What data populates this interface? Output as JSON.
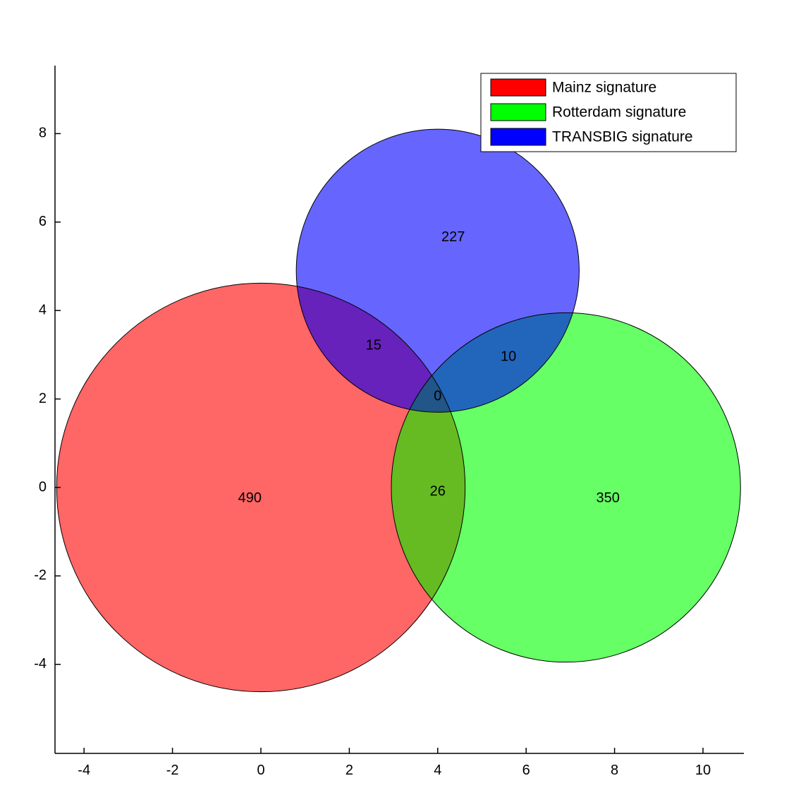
{
  "chart_data": {
    "type": "venn",
    "title": "",
    "xlabel": "",
    "ylabel": "",
    "xlim": [
      -4.6,
      10.9
    ],
    "ylim": [
      -6.1,
      9.5
    ],
    "xticks": [
      -4,
      -2,
      0,
      2,
      4,
      6,
      8,
      10
    ],
    "yticks": [
      -4,
      -2,
      0,
      2,
      4,
      6,
      8
    ],
    "grid": false,
    "legend_position": "top-right",
    "sets": [
      {
        "name": "Mainz signature",
        "color": "#ff0000",
        "fill": "#ff6666",
        "cx": 0,
        "cy": 0,
        "r": 4.62
      },
      {
        "name": "Rotterdam signature",
        "color": "#00ff00",
        "fill": "#66ff66",
        "cx": 6.9,
        "cy": 0,
        "r": 3.95
      },
      {
        "name": "TRANSBIG signature",
        "color": "#0000ff",
        "fill": "#6666ff",
        "cx": 4.0,
        "cy": 4.9,
        "r": 3.2
      }
    ],
    "regions": [
      {
        "label": "490",
        "x": -0.25,
        "y": -0.25
      },
      {
        "label": "350",
        "x": 7.85,
        "y": -0.25
      },
      {
        "label": "227",
        "x": 4.35,
        "y": 5.65
      },
      {
        "label": "15",
        "x": 2.55,
        "y": 3.2
      },
      {
        "label": "10",
        "x": 5.6,
        "y": 2.95
      },
      {
        "label": "26",
        "x": 4.0,
        "y": -0.1
      },
      {
        "label": "0",
        "x": 4.0,
        "y": 2.05
      }
    ],
    "overlap_colors": {
      "mainz_transbig": "#6622bb",
      "rotterdam_transbig": "#2266bb",
      "mainz_rotterdam": "#66bb22",
      "all": "#225588"
    }
  }
}
